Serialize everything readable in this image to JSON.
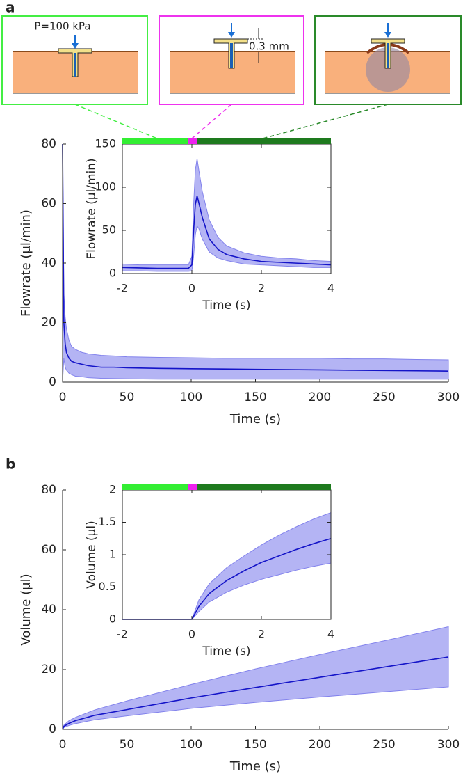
{
  "panels": [
    "a",
    "b"
  ],
  "diagram": {
    "pressure_label": "P=100 kPa",
    "gap_label": "0.3 mm"
  },
  "chart_data": [
    {
      "type": "line",
      "xlabel": "Time (s)",
      "ylabel": "Flowrate (μl/min)",
      "xlim": [
        0,
        300
      ],
      "ylim": [
        0,
        80
      ],
      "xticks": [
        0,
        50,
        100,
        150,
        200,
        250,
        300
      ],
      "yticks": [
        0,
        20,
        40,
        60,
        80
      ],
      "x": [
        0,
        1,
        2,
        3,
        5,
        7,
        10,
        15,
        20,
        30,
        40,
        50,
        75,
        100,
        125,
        150,
        175,
        200,
        225,
        250,
        275,
        300
      ],
      "series": [
        {
          "color": "#1414c8",
          "values": [
            80,
            20,
            13,
            10,
            8,
            7,
            6.5,
            6,
            5.5,
            5,
            5,
            4.8,
            4.6,
            4.5,
            4.4,
            4.3,
            4.2,
            4.1,
            4,
            3.9,
            3.8,
            3.7
          ]
        }
      ],
      "band": {
        "color": "#8282ec",
        "lower": [
          0,
          8,
          5,
          4,
          3,
          2.5,
          2,
          1.8,
          1.5,
          1.3,
          1.2,
          1.1,
          1,
          1,
          1,
          1,
          1,
          1,
          1,
          1,
          1,
          1
        ],
        "upper": [
          80,
          30,
          22,
          18,
          14,
          12,
          11,
          10,
          9.5,
          9,
          8.8,
          8.5,
          8.3,
          8.2,
          8,
          8,
          8,
          8,
          7.8,
          7.8,
          7.6,
          7.5
        ]
      }
    },
    {
      "type": "line",
      "xlabel": "Time (s)",
      "ylabel": "Flowrate (μl/min)",
      "xlim": [
        -2,
        4
      ],
      "ylim": [
        0,
        150
      ],
      "xticks": [
        -2,
        0,
        2,
        4
      ],
      "yticks": [
        0,
        50,
        100,
        150
      ],
      "x": [
        -2,
        -1.5,
        -1,
        -0.5,
        -0.1,
        0,
        0.05,
        0.1,
        0.15,
        0.2,
        0.3,
        0.5,
        0.75,
        1,
        1.5,
        2,
        2.5,
        3,
        3.5,
        4
      ],
      "series": [
        {
          "color": "#1414c8",
          "values": [
            7,
            6.5,
            6,
            6,
            6,
            10,
            50,
            80,
            90,
            82,
            65,
            40,
            28,
            22,
            17,
            14,
            13,
            12,
            11,
            10
          ]
        }
      ],
      "band": {
        "color": "#8282ec",
        "lower": [
          3,
          3,
          2.5,
          2.5,
          2.5,
          3,
          20,
          45,
          55,
          52,
          40,
          25,
          18,
          15,
          11,
          10,
          9,
          8,
          7,
          7
        ],
        "upper": [
          11,
          10,
          10,
          10,
          10,
          20,
          80,
          120,
          133,
          120,
          95,
          62,
          42,
          32,
          24,
          20,
          18,
          17,
          15,
          14
        ]
      },
      "phases": [
        {
          "from": -2,
          "to": -0.1,
          "color": "#33ee33"
        },
        {
          "from": -0.1,
          "to": 0.15,
          "color": "#ee22ee"
        },
        {
          "from": 0.15,
          "to": 4,
          "color": "#1e7a1e"
        }
      ]
    },
    {
      "type": "line",
      "xlabel": "Time (s)",
      "ylabel": "Volume (μl)",
      "xlim": [
        0,
        300
      ],
      "ylim": [
        0,
        80
      ],
      "xticks": [
        0,
        50,
        100,
        150,
        200,
        250,
        300
      ],
      "yticks": [
        0,
        20,
        40,
        60,
        80
      ],
      "x": [
        0,
        1,
        5,
        10,
        25,
        50,
        100,
        150,
        200,
        250,
        300
      ],
      "series": [
        {
          "color": "#1414c8",
          "values": [
            0,
            1,
            2,
            2.9,
            4.7,
            6.6,
            10.5,
            14,
            17.4,
            20.8,
            24.2
          ]
        }
      ],
      "band": {
        "color": "#8282ec",
        "lower": [
          0,
          0.6,
          1.3,
          1.9,
          3.2,
          4.5,
          7,
          9,
          10.8,
          12.5,
          14.2
        ],
        "upper": [
          0,
          1.4,
          2.9,
          4,
          6.5,
          9.5,
          15,
          20.2,
          25,
          29.6,
          34.3
        ]
      }
    },
    {
      "type": "line",
      "xlabel": "Time (s)",
      "ylabel": "Volume (μl)",
      "xlim": [
        -2,
        4
      ],
      "ylim": [
        0,
        2
      ],
      "xticks": [
        -2,
        0,
        2,
        4
      ],
      "yticks": [
        0,
        0.5,
        1,
        1.5,
        2
      ],
      "x": [
        -2,
        -1,
        -0.1,
        0,
        0.2,
        0.5,
        1,
        1.5,
        2,
        2.5,
        3,
        3.5,
        4
      ],
      "series": [
        {
          "color": "#1414c8",
          "values": [
            0,
            0,
            0,
            0,
            0.2,
            0.4,
            0.6,
            0.75,
            0.88,
            0.98,
            1.08,
            1.17,
            1.25
          ]
        }
      ],
      "band": {
        "color": "#8282ec",
        "lower": [
          0,
          0,
          0,
          0,
          0.12,
          0.27,
          0.42,
          0.53,
          0.62,
          0.69,
          0.76,
          0.82,
          0.87
        ],
        "upper": [
          0,
          0,
          0,
          0,
          0.3,
          0.55,
          0.8,
          0.98,
          1.15,
          1.3,
          1.43,
          1.55,
          1.65
        ]
      },
      "phases": [
        {
          "from": -2,
          "to": -0.1,
          "color": "#33ee33"
        },
        {
          "from": -0.1,
          "to": 0.15,
          "color": "#ee22ee"
        },
        {
          "from": 0.15,
          "to": 4,
          "color": "#1e7a1e"
        }
      ]
    }
  ]
}
